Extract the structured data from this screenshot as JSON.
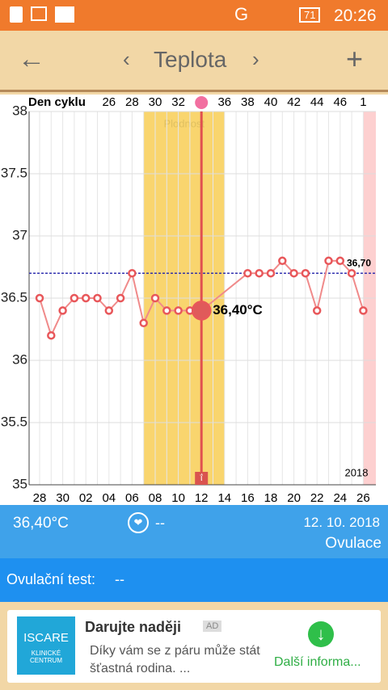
{
  "status_bar": {
    "battery": "71",
    "network": "G",
    "time": "20:26"
  },
  "header": {
    "title": "Teplota"
  },
  "chart_data": {
    "type": "line",
    "top_axis_label": "Den cyklu",
    "cycle_days": [
      null,
      null,
      null,
      null,
      null,
      null,
      "26",
      null,
      "28",
      null,
      "30",
      null,
      "32",
      null,
      null,
      null,
      "36",
      null,
      "38",
      null,
      "40",
      null,
      "42",
      null,
      "44",
      null,
      "46",
      null,
      "1"
    ],
    "categories": [
      "28",
      null,
      "30",
      null,
      "02",
      null,
      "04",
      null,
      "06",
      null,
      "08",
      null,
      "10",
      null,
      "12",
      null,
      "14",
      null,
      "16",
      null,
      "18",
      null,
      "20",
      null,
      "22",
      null,
      "24",
      null,
      "26"
    ],
    "series": [
      {
        "name": "Teplota",
        "color": "#f08a8a",
        "values": [
          36.5,
          36.2,
          36.4,
          36.5,
          36.5,
          36.5,
          36.4,
          36.5,
          36.7,
          36.3,
          36.5,
          36.4,
          36.4,
          36.4,
          36.4,
          null,
          null,
          null,
          36.7,
          36.7,
          36.7,
          36.8,
          36.7,
          36.7,
          36.4,
          36.8,
          36.8,
          36.7,
          36.4
        ]
      }
    ],
    "ylim": [
      35,
      38
    ],
    "yticks": [
      35,
      35.5,
      36,
      36.5,
      37,
      37.5,
      38
    ],
    "grid": true,
    "coverline": {
      "value": 36.7,
      "label": "36,70"
    },
    "fertile_label": "Plodnost",
    "ovulation_icon": "ΐ",
    "selected_label": "36,40°C",
    "year": "2018"
  },
  "info": {
    "temperature": "36,40°C",
    "heart": "--",
    "date": "12. 10. 2018",
    "status": "Ovulace",
    "test_label": "Ovulační test:",
    "test_value": "--"
  },
  "ad": {
    "logo": "ISCARE",
    "logo_sub": "KLINICKÉ CENTRUM",
    "title": "Darujte naději",
    "badge": "AD",
    "text": "Díky vám se z páru může stát šťastná rodina. ...",
    "cta": "Další informa..."
  }
}
